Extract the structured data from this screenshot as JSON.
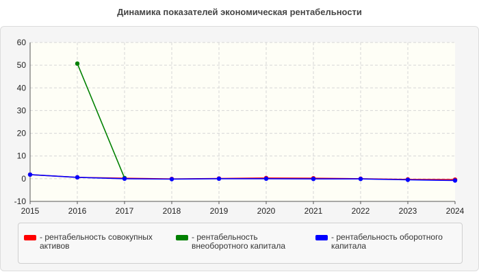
{
  "chart_data": {
    "type": "line",
    "title": "Динамика показателей экономическая рентабельности",
    "xlabel": "",
    "ylabel": "",
    "categories": [
      "2015",
      "2016",
      "2017",
      "2018",
      "2019",
      "2020",
      "2021",
      "2022",
      "2023",
      "2024"
    ],
    "ylim": [
      -10,
      60
    ],
    "yticks": [
      "-10",
      "0",
      "10",
      "20",
      "30",
      "40",
      "50",
      "60"
    ],
    "grid": true,
    "legend_position": "bottom",
    "series": [
      {
        "name": "рентабельность совокупных активов",
        "color": "#ff0000",
        "values": [
          1.8,
          0.6,
          0.2,
          -0.1,
          0.1,
          0.3,
          0.2,
          0.0,
          -0.3,
          -0.4
        ]
      },
      {
        "name": "рентабельность внеоборотного капитала",
        "color": "#008000",
        "values": [
          null,
          50.7,
          0.3,
          null,
          null,
          null,
          null,
          null,
          null,
          null
        ]
      },
      {
        "name": "рентабельность оборотного капитала",
        "color": "#0000ff",
        "values": [
          1.8,
          0.6,
          0.0,
          -0.2,
          0.0,
          0.0,
          -0.1,
          -0.1,
          -0.5,
          -0.8
        ]
      }
    ]
  }
}
